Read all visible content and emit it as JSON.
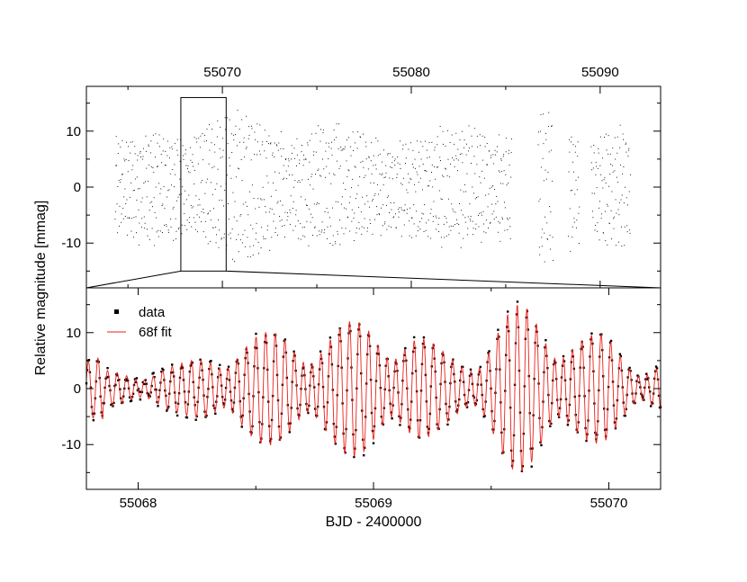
{
  "chart_data": [
    {
      "type": "scatter",
      "panel": "top",
      "xlabel": "",
      "ylabel": "Relative magnitude [mmag]",
      "xlim": [
        55062.8,
        55093.2
      ],
      "ylim": [
        -18,
        18
      ],
      "x_ticks": [
        55070,
        55080,
        55090
      ],
      "x_tick_labels": [
        "55070",
        "55080",
        "55090"
      ],
      "y_ticks": [
        10,
        0,
        -10
      ],
      "y_tick_labels": [
        "10",
        "0",
        "-10"
      ],
      "x_axis_position": "top",
      "segments": [
        {
          "x_start": 55064.3,
          "x_end": 55085.3
        },
        {
          "x_start": 55086.7,
          "x_end": 55087.5
        },
        {
          "x_start": 55088.3,
          "x_end": 55088.9
        },
        {
          "x_start": 55089.5,
          "x_end": 55091.6
        }
      ],
      "amplitude_range": [
        -16,
        16
      ],
      "zoom_box": {
        "x": [
          55067.8,
          55070.2
        ],
        "y": [
          -15,
          16
        ]
      },
      "series": [
        {
          "name": "",
          "color": "#000000",
          "marker": "dot"
        }
      ]
    },
    {
      "type": "line",
      "panel": "bottom",
      "xlabel": "BJD - 2400000",
      "ylabel": "Relative magnitude [mmag]",
      "xlim": [
        55067.78,
        55070.22
      ],
      "ylim": [
        -18,
        18
      ],
      "x_ticks": [
        55068,
        55069,
        55070
      ],
      "x_tick_labels": [
        "55068",
        "55069",
        "55070"
      ],
      "y_ticks": [
        10,
        0,
        -10
      ],
      "y_tick_labels": [
        "10",
        "0",
        "-10"
      ],
      "legend": {
        "placement": "top-left",
        "entries": [
          {
            "label": "data",
            "color": "#000000",
            "style": "square-marker"
          },
          {
            "label": "68f fit",
            "color": "#e8201a",
            "style": "line"
          }
        ]
      },
      "peaks": {
        "x": [
          55067.85,
          55068.15,
          55068.45,
          55068.75,
          55069.05,
          55069.35,
          55069.65,
          55069.95,
          55070.15
        ],
        "amplitude": [
          3,
          4,
          9,
          10,
          12,
          6,
          14,
          9,
          5
        ]
      },
      "series": [
        {
          "name": "data",
          "color": "#000000",
          "marker": "square"
        },
        {
          "name": "68f fit",
          "color": "#e8201a",
          "marker": "none"
        }
      ]
    }
  ]
}
